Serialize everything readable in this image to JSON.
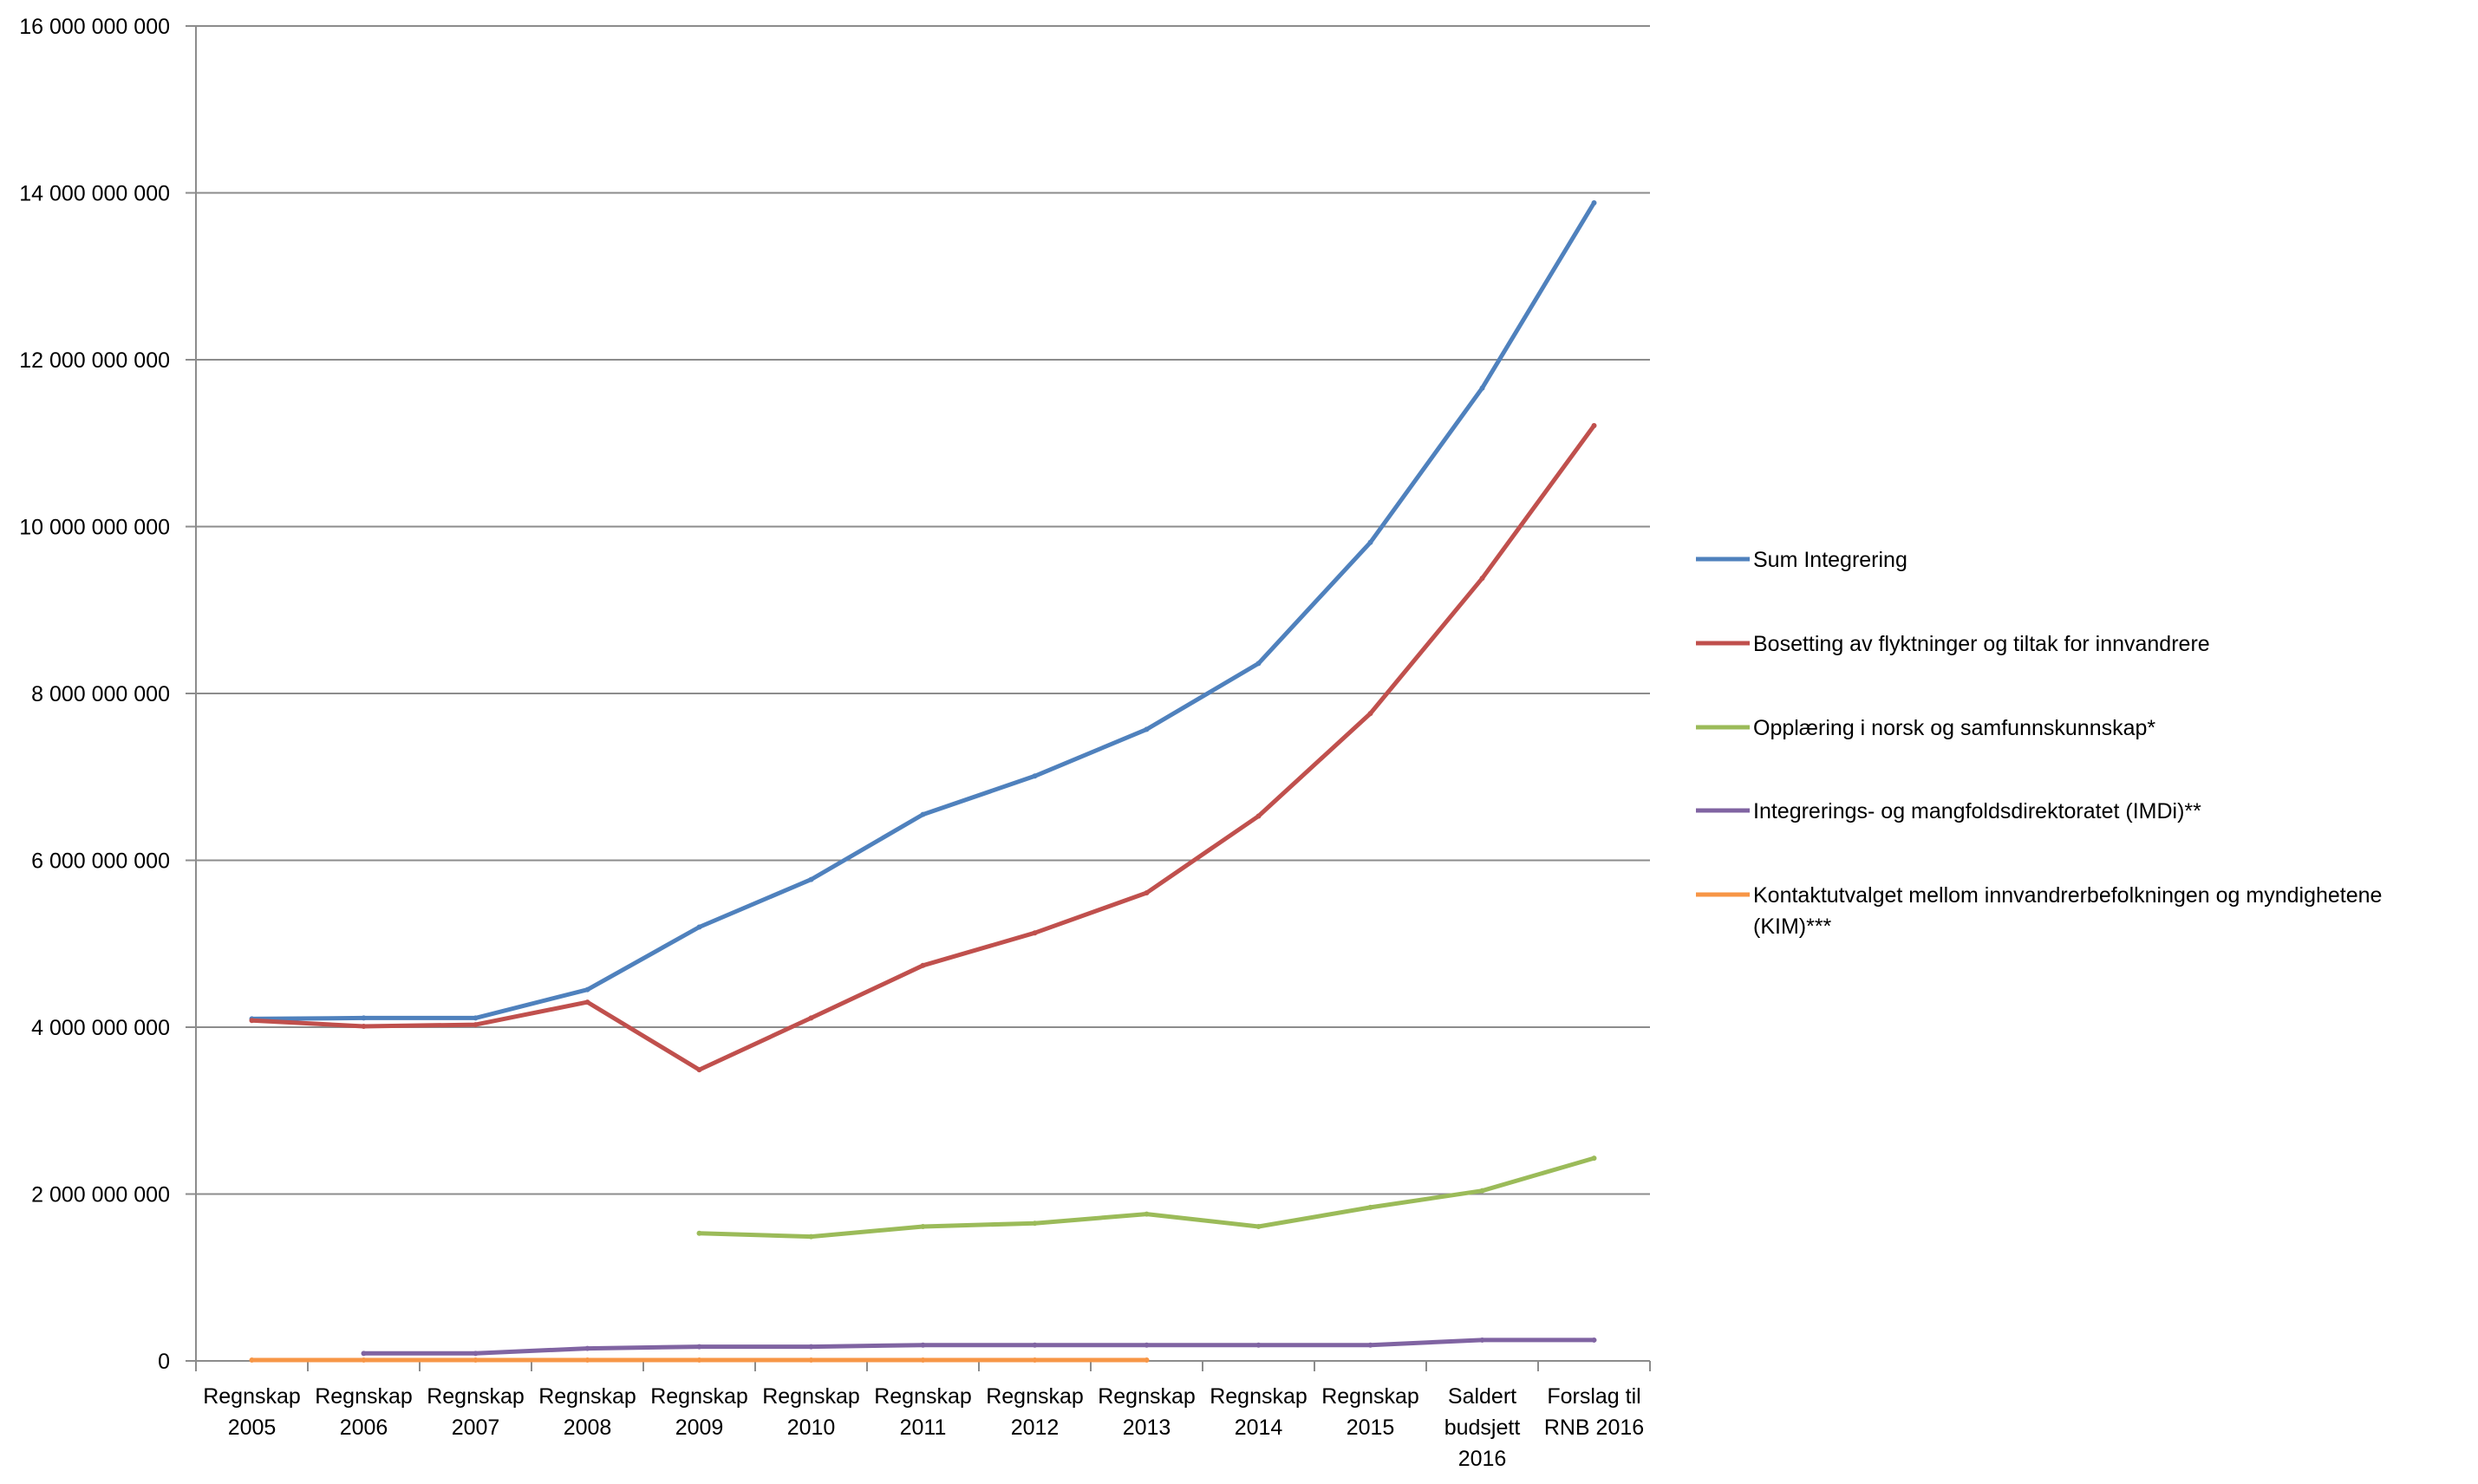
{
  "chart_data": {
    "type": "line",
    "title": "",
    "xlabel": "",
    "ylabel": "",
    "ylim": [
      0,
      16000000000
    ],
    "y_ticks": [
      0,
      2000000000,
      4000000000,
      6000000000,
      8000000000,
      10000000000,
      12000000000,
      14000000000,
      16000000000
    ],
    "y_tick_labels": [
      "0",
      "2 000 000 000",
      "4 000 000 000",
      "6 000 000 000",
      "8 000 000 000",
      "10 000 000 000",
      "12 000 000 000",
      "14 000 000 000",
      "16 000 000 000"
    ],
    "grid": true,
    "legend_position": "right",
    "categories": [
      [
        "Regnskap",
        "2005"
      ],
      [
        "Regnskap",
        "2006"
      ],
      [
        "Regnskap",
        "2007"
      ],
      [
        "Regnskap",
        "2008"
      ],
      [
        "Regnskap",
        "2009"
      ],
      [
        "Regnskap",
        "2010"
      ],
      [
        "Regnskap",
        "2011"
      ],
      [
        "Regnskap",
        "2012"
      ],
      [
        "Regnskap",
        "2013"
      ],
      [
        "Regnskap",
        "2014"
      ],
      [
        "Regnskap",
        "2015"
      ],
      [
        "Saldert",
        "budsjett",
        "2016"
      ],
      [
        "Forslag til",
        "RNB 2016"
      ]
    ],
    "series": [
      {
        "name": "Sum Integrering",
        "legend_lines": [
          "Sum Integrering"
        ],
        "color": "#4F81BD",
        "values": [
          4100000000,
          4110000000,
          4110000000,
          4450000000,
          5200000000,
          5770000000,
          6550000000,
          7010000000,
          7570000000,
          8360000000,
          9810000000,
          11660000000,
          13880000000
        ]
      },
      {
        "name": "Bosetting av flyktninger og tiltak for innvandrere",
        "legend_lines": [
          "Bosetting av flyktninger og tiltak for innvandrere"
        ],
        "color": "#C0504D",
        "values": [
          4080000000,
          4010000000,
          4030000000,
          4300000000,
          3490000000,
          4110000000,
          4740000000,
          5130000000,
          5610000000,
          6530000000,
          7760000000,
          9380000000,
          11210000000
        ]
      },
      {
        "name": "Opplæring i norsk og samfunnskunnskap*",
        "legend_lines": [
          "Opplæring i norsk og samfunnskunnskap*"
        ],
        "color": "#9BBB59",
        "values": [
          null,
          null,
          null,
          null,
          1530000000,
          1490000000,
          1610000000,
          1650000000,
          1760000000,
          1610000000,
          1840000000,
          2040000000,
          2430000000
        ]
      },
      {
        "name": "Integrerings- og mangfoldsdirektoratet (IMDi)**",
        "legend_lines": [
          "Integrerings- og mangfoldsdirektoratet (IMDi)**"
        ],
        "color": "#8064A2",
        "values": [
          null,
          90000000,
          90000000,
          150000000,
          170000000,
          170000000,
          190000000,
          190000000,
          190000000,
          190000000,
          190000000,
          250000000,
          250000000
        ]
      },
      {
        "name": "Kontaktutvalget mellom innvandrerbefolkningen og myndighetene (KIM)***",
        "legend_lines": [
          "Kontaktutvalget mellom innvandrerbefolkningen og myndighetene",
          "(KIM)***"
        ],
        "color": "#F79646",
        "values": [
          10000000,
          10000000,
          10000000,
          10000000,
          10000000,
          10000000,
          10000000,
          10000000,
          10000000,
          null,
          null,
          null,
          null
        ]
      }
    ]
  }
}
